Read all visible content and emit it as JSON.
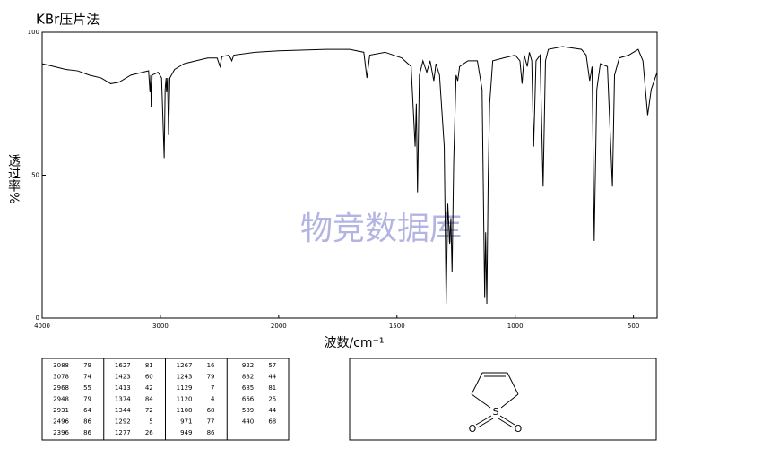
{
  "chart_data": {
    "type": "line",
    "title": "KBr压片法",
    "x_label": "波数/cm⁻¹",
    "y_label": "透过率%",
    "watermark": "物竞数据库",
    "xlim": [
      4000,
      400
    ],
    "x_break": 2000,
    "x_break_factor": 2,
    "ylim": [
      0,
      100
    ],
    "xticks": [
      4000,
      3000,
      2000,
      1500,
      1000,
      500
    ],
    "yticks": [
      0,
      50,
      100
    ],
    "series": [
      {
        "color": "#000000",
        "x": [
          4000,
          3900,
          3800,
          3700,
          3600,
          3500,
          3420,
          3350,
          3250,
          3150,
          3100,
          3088,
          3082,
          3078,
          3070,
          3020,
          2990,
          2968,
          2960,
          2952,
          2948,
          2940,
          2931,
          2920,
          2880,
          2800,
          2700,
          2600,
          2520,
          2496,
          2480,
          2420,
          2396,
          2380,
          2200,
          2000,
          1800,
          1700,
          1640,
          1627,
          1615,
          1550,
          1480,
          1440,
          1423,
          1418,
          1413,
          1405,
          1390,
          1374,
          1360,
          1344,
          1335,
          1320,
          1300,
          1292,
          1285,
          1277,
          1272,
          1267,
          1260,
          1250,
          1243,
          1235,
          1200,
          1160,
          1140,
          1129,
          1125,
          1120,
          1114,
          1108,
          1095,
          1050,
          1000,
          980,
          971,
          962,
          949,
          940,
          930,
          922,
          912,
          895,
          882,
          872,
          860,
          800,
          720,
          700,
          685,
          675,
          666,
          655,
          640,
          610,
          589,
          580,
          560,
          520,
          480,
          460,
          440,
          425,
          400
        ],
        "values": [
          89,
          88,
          87,
          86.5,
          85,
          84,
          82,
          82.5,
          85,
          86,
          86.5,
          79,
          85,
          74,
          85,
          86,
          84,
          56,
          80,
          84,
          79,
          84,
          64,
          84,
          87,
          89,
          90,
          91,
          91,
          88,
          91.5,
          92,
          90,
          92,
          93,
          93.5,
          94,
          94,
          93,
          84,
          92,
          93,
          91,
          88,
          60,
          75,
          44,
          85,
          90,
          86,
          90,
          83,
          89,
          85,
          60,
          5,
          40,
          26,
          35,
          16,
          55,
          85,
          83,
          88,
          90,
          90,
          80,
          7,
          30,
          5,
          50,
          75,
          90,
          91,
          92,
          90,
          82,
          92,
          88,
          93,
          90,
          60,
          90,
          92,
          46,
          90,
          94,
          95,
          94,
          92,
          83,
          88,
          27,
          80,
          89,
          88,
          46,
          85,
          91,
          92,
          94,
          90,
          71,
          80,
          86
        ]
      }
    ]
  },
  "peak_table": [
    [
      [
        3088,
        79
      ],
      [
        3078,
        74
      ],
      [
        2968,
        55
      ],
      [
        2948,
        79
      ],
      [
        2931,
        64
      ],
      [
        2496,
        86
      ],
      [
        2396,
        86
      ]
    ],
    [
      [
        1627,
        81
      ],
      [
        1423,
        60
      ],
      [
        1413,
        42
      ],
      [
        1374,
        84
      ],
      [
        1344,
        72
      ],
      [
        1292,
        5
      ],
      [
        1277,
        26
      ]
    ],
    [
      [
        1267,
        16
      ],
      [
        1243,
        79
      ],
      [
        1129,
        7
      ],
      [
        1120,
        4
      ],
      [
        1108,
        68
      ],
      [
        971,
        77
      ],
      [
        949,
        86
      ]
    ],
    [
      [
        922,
        57
      ],
      [
        882,
        44
      ],
      [
        685,
        81
      ],
      [
        666,
        25
      ],
      [
        589,
        44
      ],
      [
        440,
        68
      ]
    ]
  ],
  "structure": {
    "atoms": [
      "S",
      "O",
      "O"
    ]
  }
}
